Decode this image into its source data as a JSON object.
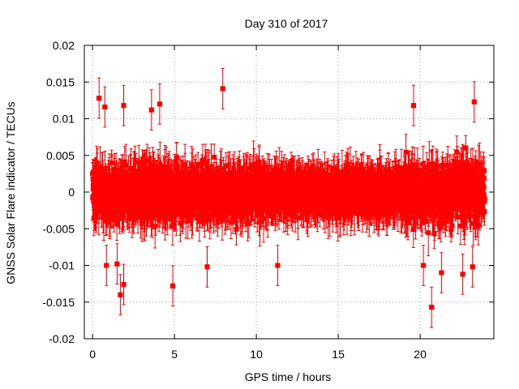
{
  "chart_data": {
    "type": "scatter",
    "title": "Day 310 of 2017",
    "xlabel": "GPS time / hours",
    "ylabel": "GNSS Solar Flare indicator / TECUs",
    "xlim": [
      -0.5,
      24.5
    ],
    "ylim": [
      -0.02,
      0.02
    ],
    "x_ticks": [
      0,
      5,
      10,
      15,
      20
    ],
    "y_ticks": [
      -0.02,
      -0.015,
      -0.01,
      -0.005,
      0,
      0.005,
      0.01,
      0.015,
      0.02
    ],
    "x_tick_labels": [
      "0",
      "5",
      "10",
      "15",
      "20"
    ],
    "y_tick_labels": [
      "-0.02",
      "-0.015",
      "-0.01",
      "-0.005",
      "0",
      "0.005",
      "0.01",
      "0.015",
      "0.02"
    ],
    "grid": true,
    "legend": "none",
    "color": "#ff0000",
    "error_bars": true,
    "series": [
      {
        "x_range": [
          0,
          23.95
        ],
        "sampling_interval_hours": 0.0083,
        "typical_value_range": [
          -0.006,
          0.006
        ],
        "typical_error": 0.0025,
        "notable_points": [
          {
            "x": 0.4,
            "y": 0.0128
          },
          {
            "x": 0.75,
            "y": 0.0116
          },
          {
            "x": 1.9,
            "y": 0.0118
          },
          {
            "x": 3.6,
            "y": 0.0112
          },
          {
            "x": 4.1,
            "y": 0.012
          },
          {
            "x": 7.95,
            "y": 0.0141
          },
          {
            "x": 19.6,
            "y": 0.0118
          },
          {
            "x": 23.3,
            "y": 0.0123
          },
          {
            "x": 1.7,
            "y": -0.014
          },
          {
            "x": 1.9,
            "y": -0.0126
          },
          {
            "x": 4.9,
            "y": -0.0128
          },
          {
            "x": 1.5,
            "y": -0.0098
          },
          {
            "x": 0.85,
            "y": -0.01
          },
          {
            "x": 7.0,
            "y": -0.0102
          },
          {
            "x": 11.3,
            "y": -0.01
          },
          {
            "x": 20.2,
            "y": -0.01
          },
          {
            "x": 20.7,
            "y": -0.0157
          },
          {
            "x": 21.3,
            "y": -0.011
          },
          {
            "x": 22.6,
            "y": -0.0112
          },
          {
            "x": 23.2,
            "y": -0.0102
          }
        ]
      }
    ]
  }
}
